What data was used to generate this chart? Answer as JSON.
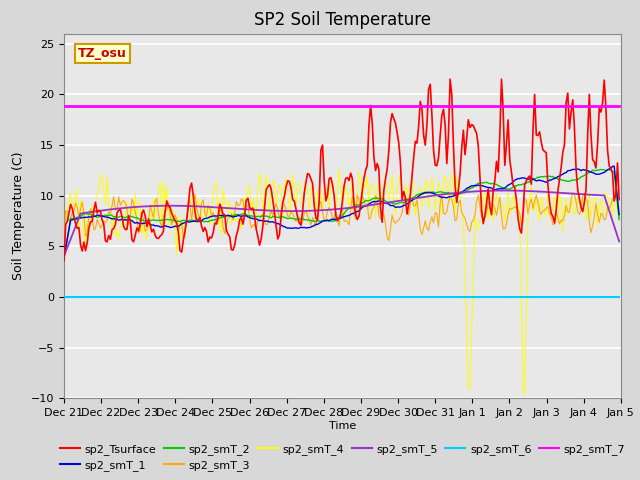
{
  "title": "SP2 Soil Temperature",
  "xlabel": "Time",
  "ylabel": "Soil Temperature (C)",
  "ylim": [
    -10,
    26
  ],
  "yticks": [
    -10,
    -5,
    0,
    5,
    10,
    15,
    20,
    25
  ],
  "background_color": "#d8d8d8",
  "plot_bg_color": "#e8e8e8",
  "grid_color": "#ffffff",
  "tz_label": "TZ_osu",
  "tz_box_facecolor": "#ffffcc",
  "tz_text_color": "#cc0000",
  "tz_box_edgecolor": "#cc9900",
  "series_colors": {
    "sp2_Tsurface": "#ff0000",
    "sp2_smT_1": "#0000dd",
    "sp2_smT_2": "#00cc00",
    "sp2_smT_3": "#ffaa00",
    "sp2_smT_4": "#ffff00",
    "sp2_smT_5": "#9933cc",
    "sp2_smT_6": "#00ccff",
    "sp2_smT_7": "#ff00ff"
  },
  "n_points": 336,
  "smT7_value": 18.9,
  "smT6_value": 0.0,
  "legend_fontsize": 8,
  "title_fontsize": 12,
  "tick_fontsize": 8,
  "xtick_labels": [
    "Dec 21",
    "Dec 22",
    "Dec 23",
    "Dec 24",
    "Dec 25",
    "Dec 26",
    "Dec 27",
    "Dec 28",
    "Dec 29",
    "Dec 30",
    "Dec 31",
    "Jan 1",
    "Jan 2",
    "Jan 3",
    "Jan 4",
    "Jan 5"
  ],
  "figsize": [
    6.4,
    4.8
  ],
  "dpi": 100
}
